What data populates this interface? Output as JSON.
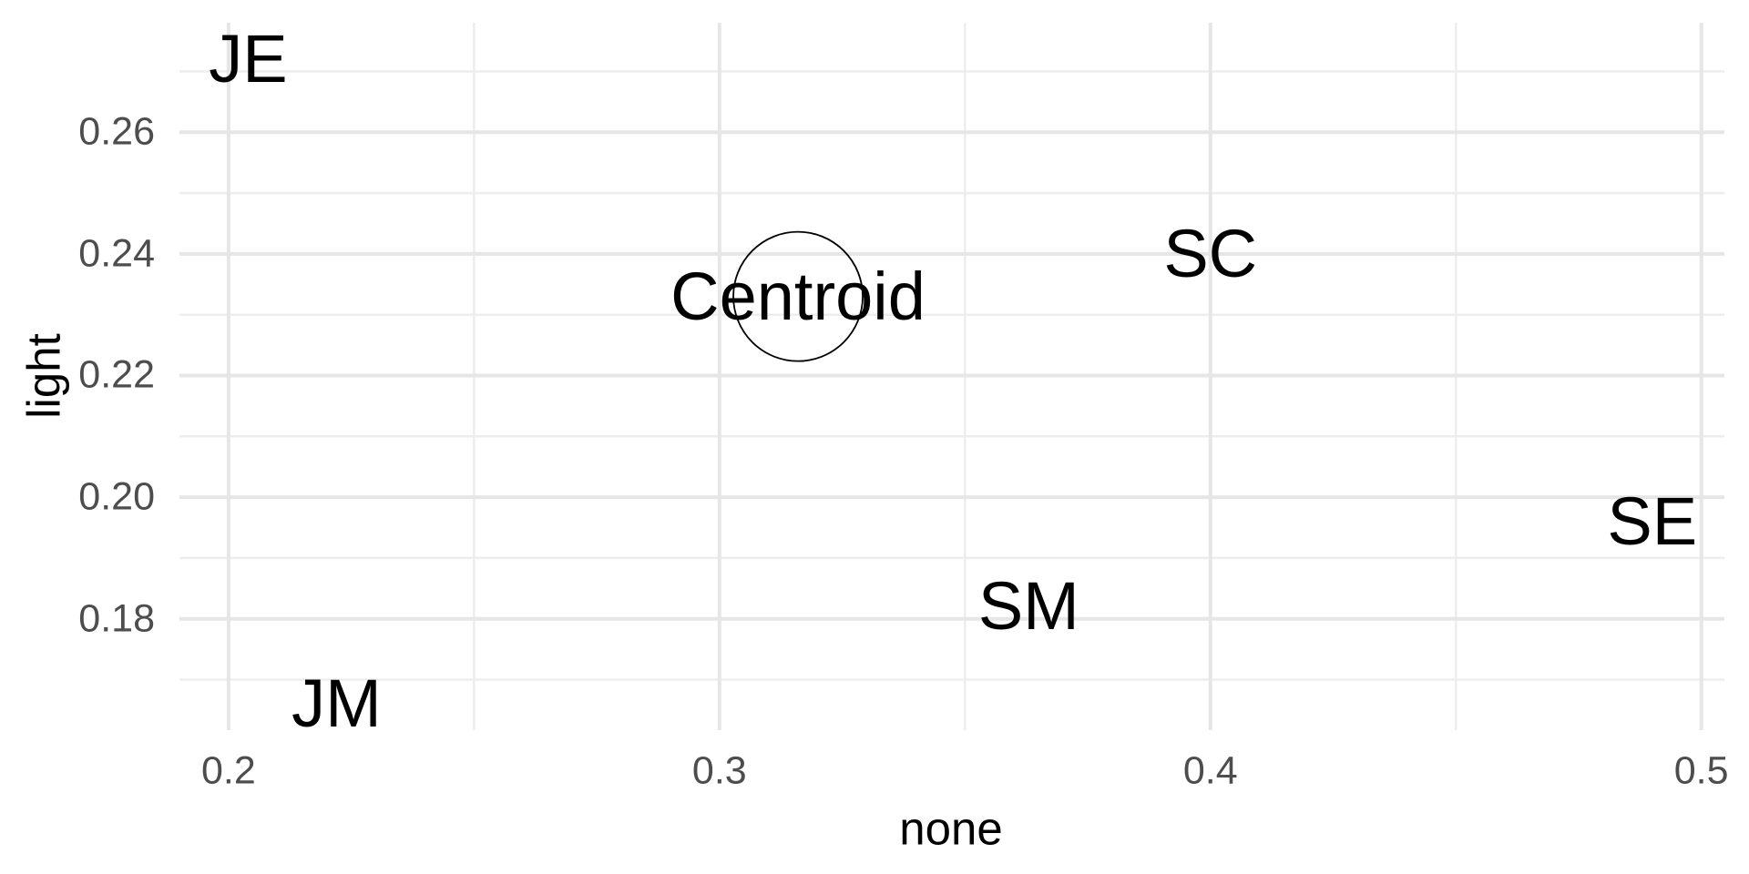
{
  "chart_data": {
    "type": "scatter",
    "title": "",
    "xlabel": "none",
    "ylabel": "light",
    "points": [
      {
        "label": "JE",
        "x": 0.204,
        "y": 0.272,
        "marker": "none"
      },
      {
        "label": "JM",
        "x": 0.222,
        "y": 0.166,
        "marker": "none"
      },
      {
        "label": "SM",
        "x": 0.363,
        "y": 0.182,
        "marker": "none"
      },
      {
        "label": "SC",
        "x": 0.4,
        "y": 0.24,
        "marker": "none"
      },
      {
        "label": "SE",
        "x": 0.49,
        "y": 0.196,
        "marker": "none"
      },
      {
        "label": "Centroid",
        "x": 0.316,
        "y": 0.233,
        "marker": "open-circle",
        "marker_radius_px": 71
      }
    ],
    "x_axis": {
      "major_ticks": [
        0.2,
        0.3,
        0.4,
        0.5
      ],
      "major_tick_labels": [
        "0.2",
        "0.3",
        "0.4",
        "0.5"
      ],
      "minor_ticks": [
        0.25,
        0.35,
        0.45
      ],
      "range": [
        0.19,
        0.5047
      ]
    },
    "y_axis": {
      "major_ticks": [
        0.26,
        0.24,
        0.22,
        0.2,
        0.18
      ],
      "major_tick_labels": [
        "0.26",
        "0.24",
        "0.22",
        "0.20",
        "0.18"
      ],
      "minor_ticks": [
        0.27,
        0.25,
        0.23,
        0.21,
        0.19,
        0.17
      ],
      "range": [
        0.1617,
        0.278
      ]
    },
    "grid": {
      "show": true,
      "major_on_top_of_minor": true
    },
    "legend": "none",
    "colors": {
      "background": "#ffffff",
      "grid_major": "#e6e6e6",
      "grid_minor": "#ededed",
      "tick_label": "#4d4d4d",
      "axis_title": "#000000",
      "point_label": "#000000",
      "marker_stroke": "#000000"
    }
  }
}
